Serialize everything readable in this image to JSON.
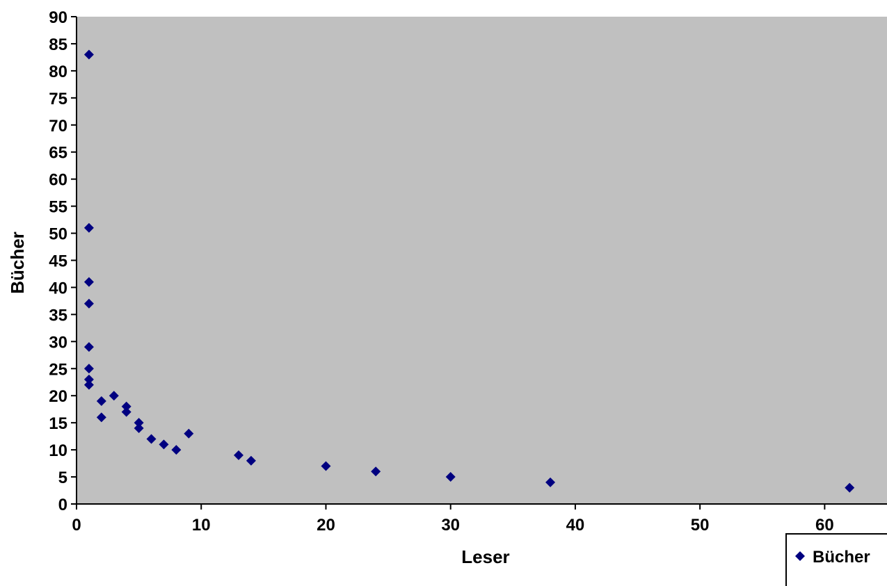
{
  "chart_data": {
    "type": "scatter",
    "xlabel": "Leser",
    "ylabel": "Bücher",
    "xlim": [
      0,
      65
    ],
    "ylim": [
      0,
      90
    ],
    "xticks": [
      0,
      10,
      20,
      30,
      40,
      50,
      60
    ],
    "yticks": [
      0,
      5,
      10,
      15,
      20,
      25,
      30,
      35,
      40,
      45,
      50,
      55,
      60,
      65,
      70,
      75,
      80,
      85,
      90
    ],
    "grid": false,
    "plot_background": "#c0c0c0",
    "legend": {
      "position": "bottom-right",
      "entries": [
        "Bücher"
      ]
    },
    "series": [
      {
        "name": "Bücher",
        "marker": "diamond",
        "color": "#000080",
        "points": [
          {
            "x": 1,
            "y": 83
          },
          {
            "x": 1,
            "y": 51
          },
          {
            "x": 1,
            "y": 41
          },
          {
            "x": 1,
            "y": 37
          },
          {
            "x": 1,
            "y": 29
          },
          {
            "x": 1,
            "y": 25
          },
          {
            "x": 1,
            "y": 23
          },
          {
            "x": 1,
            "y": 22
          },
          {
            "x": 2,
            "y": 19
          },
          {
            "x": 2,
            "y": 16
          },
          {
            "x": 3,
            "y": 20
          },
          {
            "x": 4,
            "y": 18
          },
          {
            "x": 4,
            "y": 17
          },
          {
            "x": 5,
            "y": 15
          },
          {
            "x": 5,
            "y": 14
          },
          {
            "x": 6,
            "y": 12
          },
          {
            "x": 7,
            "y": 11
          },
          {
            "x": 8,
            "y": 10
          },
          {
            "x": 9,
            "y": 13
          },
          {
            "x": 13,
            "y": 9
          },
          {
            "x": 14,
            "y": 8
          },
          {
            "x": 20,
            "y": 7
          },
          {
            "x": 24,
            "y": 6
          },
          {
            "x": 30,
            "y": 5
          },
          {
            "x": 38,
            "y": 4
          },
          {
            "x": 62,
            "y": 3
          }
        ]
      }
    ]
  }
}
